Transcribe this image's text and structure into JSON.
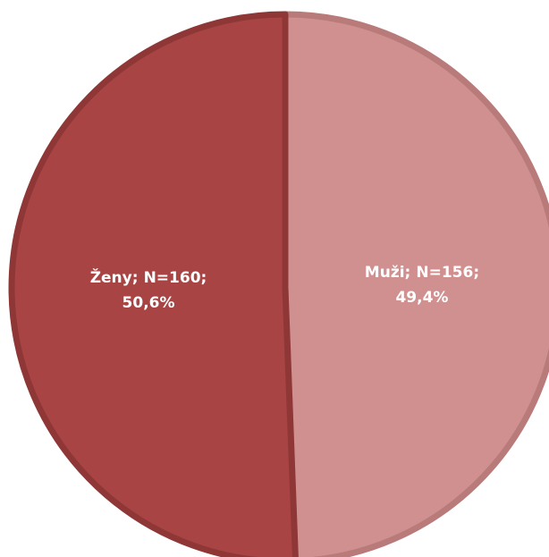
{
  "chart_data": {
    "type": "pie",
    "categories": [
      "Muži",
      "Ženy"
    ],
    "values": [
      49.4,
      50.6
    ],
    "value_labels": [
      "49,4%",
      "50,6%"
    ],
    "counts": [
      156,
      160
    ],
    "count_labels": [
      "N=156",
      "N=160"
    ],
    "separator": ";",
    "colors": [
      "#d09090",
      "#a84444"
    ],
    "edge_colors": [
      "#b97a7a",
      "#8f3737"
    ]
  }
}
